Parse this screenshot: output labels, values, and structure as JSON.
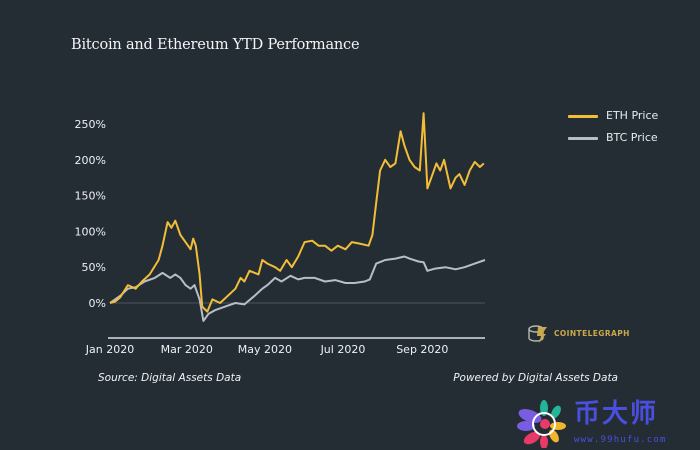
{
  "chart_data": {
    "type": "line",
    "title": "Bitcoin and Ethereum YTD Performance",
    "xlabel": "",
    "ylabel": "",
    "x_unit": "days since Jan 1 2020",
    "x_ticks": [
      {
        "label": "Jan 2020",
        "day": 0
      },
      {
        "label": "Mar 2020",
        "day": 60
      },
      {
        "label": "May 2020",
        "day": 121
      },
      {
        "label": "Jul 2020",
        "day": 182
      },
      {
        "label": "Sep 2020",
        "day": 244
      }
    ],
    "xlim": [
      0,
      292
    ],
    "y_ticks": [
      {
        "label": "0%",
        "value": 0
      },
      {
        "label": "50%",
        "value": 50
      },
      {
        "label": "100%",
        "value": 100
      },
      {
        "label": "150%",
        "value": 150
      },
      {
        "label": "200%",
        "value": 200
      },
      {
        "label": "250%",
        "value": 250
      }
    ],
    "ylim": [
      -50,
      250
    ],
    "zero_line": true,
    "legend_position": "top-right",
    "series": [
      {
        "name": "ETH Price",
        "color": "#f2bd37",
        "points": [
          [
            0,
            0
          ],
          [
            4,
            2
          ],
          [
            8,
            8
          ],
          [
            14,
            25
          ],
          [
            20,
            20
          ],
          [
            25,
            30
          ],
          [
            31,
            40
          ],
          [
            38,
            60
          ],
          [
            41,
            80
          ],
          [
            45,
            113
          ],
          [
            48,
            105
          ],
          [
            51,
            115
          ],
          [
            55,
            95
          ],
          [
            59,
            85
          ],
          [
            63,
            75
          ],
          [
            65,
            90
          ],
          [
            67,
            80
          ],
          [
            70,
            40
          ],
          [
            72,
            -5
          ],
          [
            76,
            -12
          ],
          [
            80,
            5
          ],
          [
            86,
            0
          ],
          [
            92,
            10
          ],
          [
            98,
            20
          ],
          [
            102,
            35
          ],
          [
            105,
            30
          ],
          [
            109,
            45
          ],
          [
            116,
            40
          ],
          [
            119,
            60
          ],
          [
            123,
            55
          ],
          [
            129,
            50
          ],
          [
            133,
            45
          ],
          [
            138,
            60
          ],
          [
            142,
            50
          ],
          [
            147,
            65
          ],
          [
            152,
            85
          ],
          [
            158,
            87
          ],
          [
            163,
            80
          ],
          [
            168,
            80
          ],
          [
            173,
            73
          ],
          [
            178,
            80
          ],
          [
            184,
            75
          ],
          [
            189,
            85
          ],
          [
            195,
            83
          ],
          [
            202,
            80
          ],
          [
            205,
            95
          ],
          [
            208,
            140
          ],
          [
            211,
            185
          ],
          [
            215,
            200
          ],
          [
            219,
            190
          ],
          [
            223,
            195
          ],
          [
            227,
            240
          ],
          [
            230,
            220
          ],
          [
            234,
            200
          ],
          [
            238,
            190
          ],
          [
            242,
            185
          ],
          [
            245,
            265
          ],
          [
            248,
            160
          ],
          [
            252,
            180
          ],
          [
            255,
            195
          ],
          [
            258,
            185
          ],
          [
            261,
            200
          ],
          [
            266,
            160
          ],
          [
            270,
            175
          ],
          [
            273,
            180
          ],
          [
            277,
            165
          ],
          [
            281,
            185
          ],
          [
            285,
            197
          ],
          [
            289,
            190
          ],
          [
            292,
            195
          ]
        ]
      },
      {
        "name": "BTC Price",
        "color": "#b8bec4",
        "points": [
          [
            0,
            0
          ],
          [
            8,
            10
          ],
          [
            14,
            20
          ],
          [
            20,
            22
          ],
          [
            27,
            30
          ],
          [
            35,
            35
          ],
          [
            41,
            42
          ],
          [
            47,
            35
          ],
          [
            51,
            40
          ],
          [
            55,
            35
          ],
          [
            59,
            25
          ],
          [
            63,
            20
          ],
          [
            66,
            25
          ],
          [
            70,
            5
          ],
          [
            73,
            -25
          ],
          [
            77,
            -15
          ],
          [
            82,
            -10
          ],
          [
            90,
            -5
          ],
          [
            98,
            0
          ],
          [
            105,
            -2
          ],
          [
            113,
            10
          ],
          [
            119,
            20
          ],
          [
            123,
            25
          ],
          [
            129,
            35
          ],
          [
            134,
            30
          ],
          [
            141,
            38
          ],
          [
            147,
            33
          ],
          [
            152,
            35
          ],
          [
            160,
            35
          ],
          [
            168,
            30
          ],
          [
            176,
            32
          ],
          [
            184,
            28
          ],
          [
            191,
            28
          ],
          [
            199,
            30
          ],
          [
            203,
            33
          ],
          [
            208,
            55
          ],
          [
            215,
            60
          ],
          [
            223,
            62
          ],
          [
            230,
            65
          ],
          [
            234,
            62
          ],
          [
            241,
            58
          ],
          [
            245,
            57
          ],
          [
            248,
            45
          ],
          [
            254,
            48
          ],
          [
            262,
            50
          ],
          [
            270,
            47
          ],
          [
            277,
            50
          ],
          [
            285,
            55
          ],
          [
            293,
            60
          ]
        ]
      }
    ]
  },
  "footer": {
    "source": "Source: Digital Assets Data",
    "powered_by": "Powered by Digital Assets Data"
  },
  "branding": {
    "logo_text": "COINTELEGRAPH",
    "watermark_text": "币大师",
    "watermark_url": "www.99hufu.com"
  },
  "colors": {
    "background": "#252d34",
    "eth": "#f2bd37",
    "btc": "#b8bec4",
    "brand_gold": "#c9a94b",
    "watermark": "#4a4fe0"
  }
}
